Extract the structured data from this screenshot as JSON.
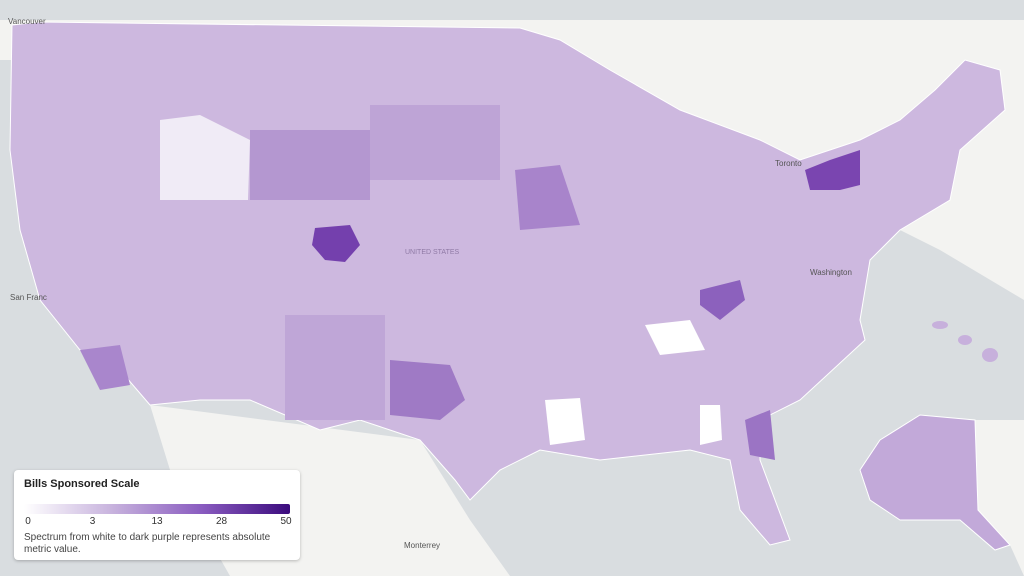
{
  "map": {
    "labels": {
      "vancouver": "Vancouver",
      "san_francisco": "San Franc",
      "toronto": "Toronto",
      "washington": "Washington",
      "united_states": "UNITED STATES",
      "monterrey": "Monterrey"
    }
  },
  "legend": {
    "title": "Bills Sponsored Scale",
    "ticks": [
      0,
      3,
      13,
      28,
      50
    ],
    "description": "Spectrum from white to dark purple represents absolute metric value."
  }
}
